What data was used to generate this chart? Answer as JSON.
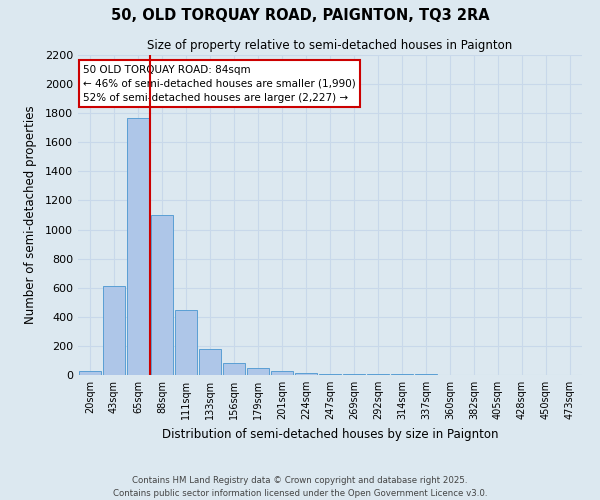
{
  "title": "50, OLD TORQUAY ROAD, PAIGNTON, TQ3 2RA",
  "subtitle": "Size of property relative to semi-detached houses in Paignton",
  "xlabel": "Distribution of semi-detached houses by size in Paignton",
  "ylabel": "Number of semi-detached properties",
  "bar_labels": [
    "20sqm",
    "43sqm",
    "65sqm",
    "88sqm",
    "111sqm",
    "133sqm",
    "156sqm",
    "179sqm",
    "201sqm",
    "224sqm",
    "247sqm",
    "269sqm",
    "292sqm",
    "314sqm",
    "337sqm",
    "360sqm",
    "382sqm",
    "405sqm",
    "428sqm",
    "450sqm",
    "473sqm"
  ],
  "bar_values": [
    30,
    610,
    1770,
    1100,
    450,
    180,
    85,
    45,
    30,
    15,
    10,
    5,
    5,
    5,
    5,
    2,
    2,
    2,
    2,
    2,
    2
  ],
  "bar_color": "#aec6e8",
  "bar_edgecolor": "#5a9fd4",
  "grid_color": "#c8d8ea",
  "background_color": "#dce8f0",
  "annotation_text": "50 OLD TORQUAY ROAD: 84sqm\n← 46% of semi-detached houses are smaller (1,990)\n52% of semi-detached houses are larger (2,227) →",
  "vline_color": "#cc0000",
  "ylim": [
    0,
    2200
  ],
  "yticks": [
    0,
    200,
    400,
    600,
    800,
    1000,
    1200,
    1400,
    1600,
    1800,
    2000,
    2200
  ],
  "annotation_box_facecolor": "#ffffff",
  "annotation_box_edgecolor": "#cc0000",
  "footer_line1": "Contains HM Land Registry data © Crown copyright and database right 2025.",
  "footer_line2": "Contains public sector information licensed under the Open Government Licence v3.0."
}
